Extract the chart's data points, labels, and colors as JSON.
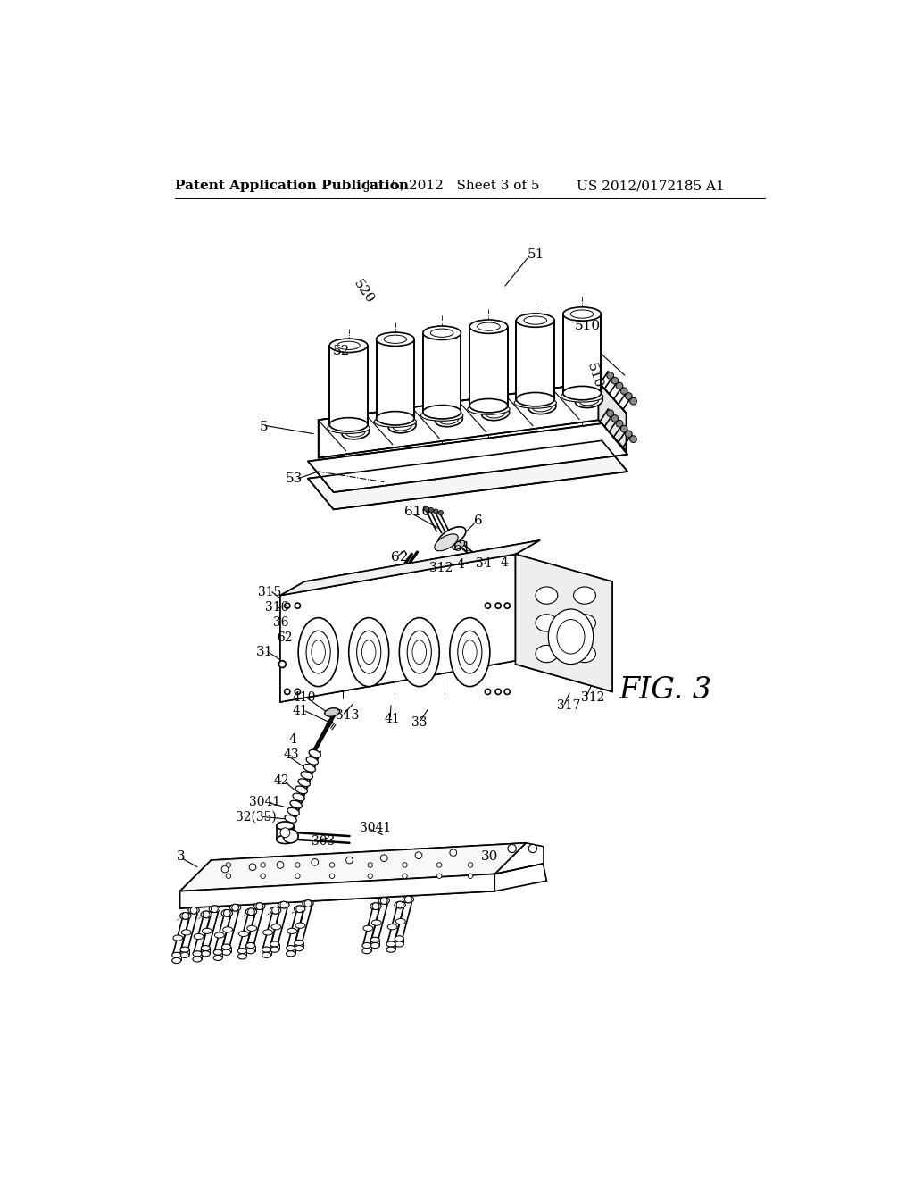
{
  "background_color": "#ffffff",
  "header_left": "Patent Application Publication",
  "header_center": "Jul. 5, 2012   Sheet 3 of 5",
  "header_right": "US 2012/0172185 A1",
  "figure_label": "FIG. 3",
  "header_fontsize": 12,
  "line_color": "#000000",
  "line_width": 1.2,
  "fig_label_fontsize": 24
}
